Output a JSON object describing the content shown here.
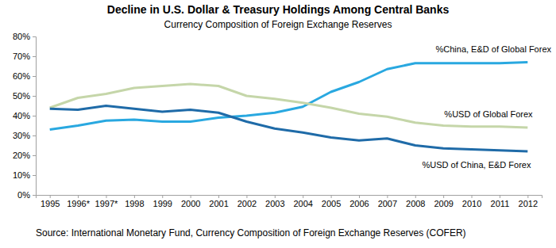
{
  "chart_data": {
    "type": "line",
    "title": "Decline in U.S. Dollar & Treasury Holdings Among Central Banks",
    "subtitle": "Currency Composition of Foreign Exchange Reserves",
    "source": "Source: International Monetary Fund, Currency Composition of Foreign Exchange Reserves (COFER)",
    "categories": [
      "1995",
      "1996*",
      "1997*",
      "1998",
      "1999",
      "2000",
      "2001",
      "2002",
      "2003",
      "2004",
      "2005",
      "2006",
      "2007",
      "2008",
      "2009",
      "2010",
      "2011",
      "2012"
    ],
    "series": [
      {
        "name": "%China, E&D of Global Forex",
        "color": "#29a8e0",
        "values": [
          33,
          35,
          37.5,
          38,
          37,
          37,
          39,
          40,
          41.5,
          44.5,
          52,
          57,
          63.5,
          66.5,
          66.5,
          66.5,
          66.5,
          67
        ]
      },
      {
        "name": "%USD of Global Forex",
        "color": "#c5d6a9",
        "values": [
          44,
          49,
          51,
          54,
          55,
          56,
          55,
          50,
          48.5,
          46.5,
          44,
          41,
          39.5,
          36.5,
          35,
          34.5,
          34.5,
          34
        ]
      },
      {
        "name": "%USD of China, E&D Forex",
        "color": "#1f6ba8",
        "values": [
          43.5,
          43,
          45,
          43.5,
          42,
          43,
          41.5,
          37,
          33.5,
          31.5,
          29,
          27.5,
          28.5,
          25,
          23.5,
          23,
          22.5,
          22
        ]
      }
    ],
    "ylim": [
      0,
      80
    ],
    "yticks": [
      {
        "value": 0,
        "label": "0%"
      },
      {
        "value": 10,
        "label": "10%"
      },
      {
        "value": 20,
        "label": "20%"
      },
      {
        "value": 30,
        "label": "30%"
      },
      {
        "value": 40,
        "label": "40%"
      },
      {
        "value": 50,
        "label": "50%"
      },
      {
        "value": 60,
        "label": "60%"
      },
      {
        "value": 70,
        "label": "70%"
      },
      {
        "value": 80,
        "label": "80%"
      }
    ],
    "grid": false
  }
}
